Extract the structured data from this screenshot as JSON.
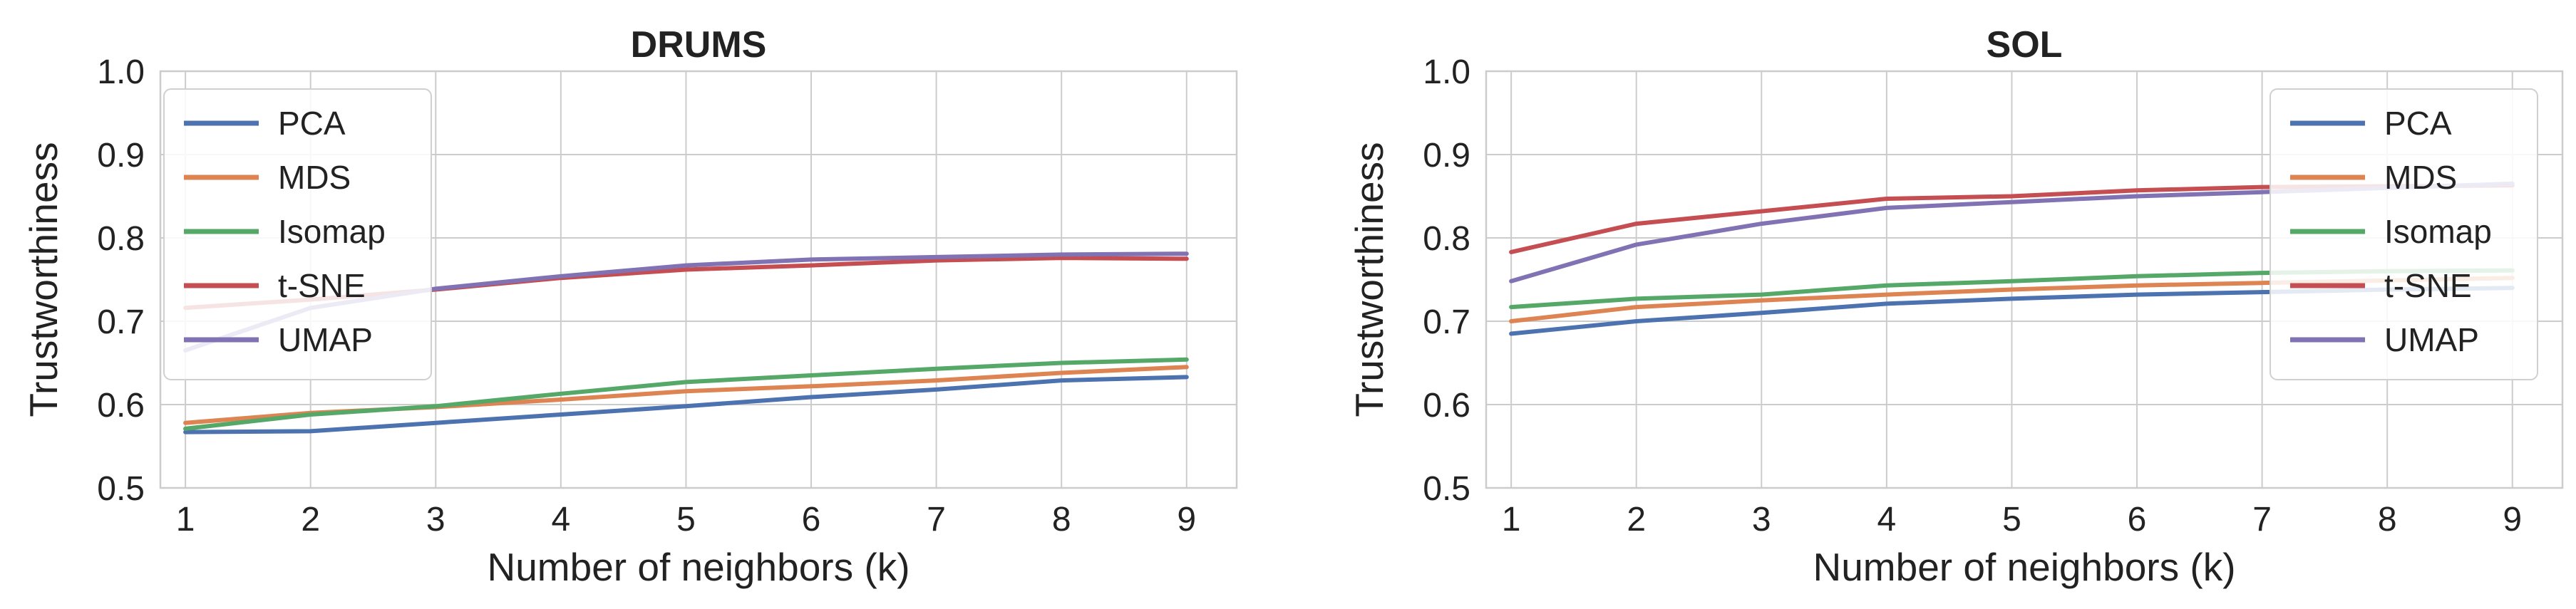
{
  "chart_data": [
    {
      "type": "line",
      "title": "DRUMS",
      "xlabel": "Number of neighbors (k)",
      "ylabel": "Trustworthiness",
      "xlim": [
        0.8,
        9.4
      ],
      "ylim": [
        0.5,
        1.0
      ],
      "x": [
        1,
        2,
        3,
        4,
        5,
        6,
        7,
        8,
        9
      ],
      "xticks": [
        "1",
        "2",
        "3",
        "4",
        "5",
        "6",
        "7",
        "8",
        "9"
      ],
      "yticks": [
        "0.5",
        "0.6",
        "0.7",
        "0.8",
        "0.9",
        "1.0"
      ],
      "grid": true,
      "legend_position": "top-left",
      "series": [
        {
          "name": "PCA",
          "color": "#4c72b0",
          "values": [
            0.567,
            0.568,
            0.578,
            0.588,
            0.598,
            0.609,
            0.618,
            0.629,
            0.633
          ]
        },
        {
          "name": "MDS",
          "color": "#dd8452",
          "values": [
            0.578,
            0.59,
            0.597,
            0.606,
            0.616,
            0.622,
            0.629,
            0.638,
            0.645
          ]
        },
        {
          "name": "Isomap",
          "color": "#55a868",
          "values": [
            0.571,
            0.588,
            0.598,
            0.613,
            0.627,
            0.635,
            0.643,
            0.65,
            0.654
          ]
        },
        {
          "name": "t-SNE",
          "color": "#c44e52",
          "values": [
            0.716,
            0.726,
            0.738,
            0.752,
            0.762,
            0.767,
            0.773,
            0.776,
            0.775
          ]
        },
        {
          "name": "UMAP",
          "color": "#8172b3",
          "values": [
            0.665,
            0.716,
            0.739,
            0.754,
            0.767,
            0.774,
            0.777,
            0.78,
            0.781
          ]
        }
      ]
    },
    {
      "type": "line",
      "title": "SOL",
      "xlabel": "Number of neighbors (k)",
      "ylabel": "Trustworthiness",
      "xlim": [
        0.8,
        9.4
      ],
      "ylim": [
        0.5,
        1.0
      ],
      "x": [
        1,
        2,
        3,
        4,
        5,
        6,
        7,
        8,
        9
      ],
      "xticks": [
        "1",
        "2",
        "3",
        "4",
        "5",
        "6",
        "7",
        "8",
        "9"
      ],
      "yticks": [
        "0.5",
        "0.6",
        "0.7",
        "0.8",
        "0.9",
        "1.0"
      ],
      "grid": true,
      "legend_position": "top-right",
      "series": [
        {
          "name": "PCA",
          "color": "#4c72b0",
          "values": [
            0.685,
            0.7,
            0.71,
            0.721,
            0.727,
            0.732,
            0.735,
            0.738,
            0.74
          ]
        },
        {
          "name": "MDS",
          "color": "#dd8452",
          "values": [
            0.7,
            0.717,
            0.725,
            0.732,
            0.738,
            0.743,
            0.746,
            0.749,
            0.752
          ]
        },
        {
          "name": "Isomap",
          "color": "#55a868",
          "values": [
            0.717,
            0.727,
            0.732,
            0.743,
            0.748,
            0.754,
            0.758,
            0.76,
            0.761
          ]
        },
        {
          "name": "t-SNE",
          "color": "#c44e52",
          "values": [
            0.783,
            0.817,
            0.832,
            0.847,
            0.85,
            0.857,
            0.861,
            0.862,
            0.863
          ]
        },
        {
          "name": "UMAP",
          "color": "#8172b3",
          "values": [
            0.748,
            0.792,
            0.817,
            0.836,
            0.843,
            0.85,
            0.855,
            0.86,
            0.865
          ]
        }
      ]
    }
  ]
}
